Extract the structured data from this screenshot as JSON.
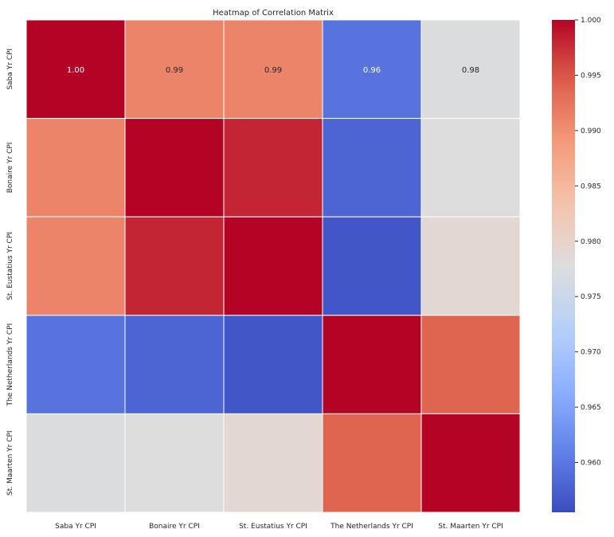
{
  "chart_data": {
    "type": "heatmap",
    "title": "Heatmap of Correlation Matrix",
    "categories": [
      "Saba Yr CPI",
      "Bonaire Yr CPI",
      "St. Eustatius  Yr CPI",
      "The Netherlands Yr CPI",
      "St. Maarten Yr CPI"
    ],
    "matrix": [
      [
        1.0,
        0.991,
        0.991,
        0.9595,
        0.9775
      ],
      [
        0.991,
        1.0,
        0.998,
        0.958,
        0.9778
      ],
      [
        0.991,
        0.998,
        1.0,
        0.9565,
        0.979
      ],
      [
        0.9595,
        0.958,
        0.9565,
        1.0,
        0.994
      ],
      [
        0.9775,
        0.9778,
        0.979,
        0.994,
        1.0
      ]
    ],
    "annotated_row": 0,
    "annotations": [
      "1.00",
      "0.99",
      "0.99",
      "0.96",
      "0.98"
    ],
    "colormap": "coolwarm",
    "vmin": 0.9555,
    "vmax": 1.0,
    "colorbar_ticks": [
      "0.960",
      "0.965",
      "0.970",
      "0.975",
      "0.980",
      "0.985",
      "0.990",
      "0.995",
      "1.000"
    ],
    "colorbar_tick_values": [
      0.96,
      0.965,
      0.97,
      0.975,
      0.98,
      0.985,
      0.99,
      0.995,
      1.0
    ]
  }
}
